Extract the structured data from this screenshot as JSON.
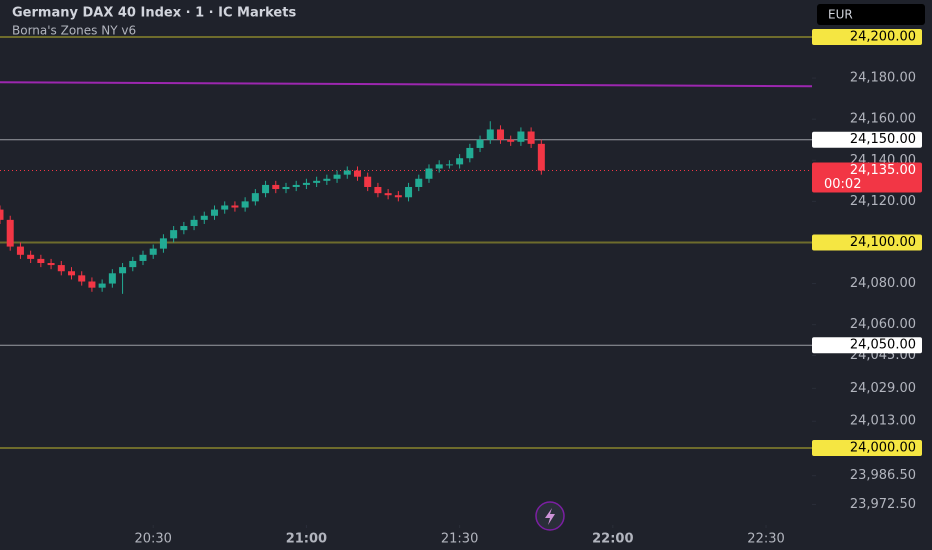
{
  "header": {
    "title": "Germany DAX 40 Index · 1 · IC Markets",
    "indicator": "Borna's Zones NY v6",
    "currency": "EUR"
  },
  "chart_data": {
    "type": "candlestick",
    "up_color": "#22ab94",
    "down_color": "#f23645",
    "ylim": [
      23962.5,
      24218
    ],
    "xlim": [
      "20:00",
      "22:39"
    ],
    "yticks": [
      {
        "value": 24180,
        "label": "24,180.00"
      },
      {
        "value": 24160,
        "label": "24,160.00"
      },
      {
        "value": 24140,
        "label": "24,140.00"
      },
      {
        "value": 24120,
        "label": "24,120.00"
      },
      {
        "value": 24080,
        "label": "24,080.00"
      },
      {
        "value": 24060,
        "label": "24,060.00"
      },
      {
        "value": 24045,
        "label": "24,045.00"
      },
      {
        "value": 24029,
        "label": "24,029.00"
      },
      {
        "value": 24013,
        "label": "24,013.00"
      },
      {
        "value": 23986.5,
        "label": "23,986.50"
      },
      {
        "value": 23972.5,
        "label": "23,972.50"
      }
    ],
    "xticks": [
      "20:30",
      "21:00",
      "21:30",
      "22:00",
      "22:30"
    ],
    "levels": [
      {
        "value": 24200,
        "label": "24,200.00",
        "color": "#6e6c2c",
        "label_color": "#f5e642"
      },
      {
        "value": 24150,
        "label": "24,150.00",
        "color": "#9a9ca3",
        "label_color": "#ffffff"
      },
      {
        "value": 24100,
        "label": "24,100.00",
        "color": "#6e6c2c",
        "label_color": "#f5e642"
      },
      {
        "value": 24050,
        "label": "24,050.00",
        "color": "#9a9ca3",
        "label_color": "#ffffff"
      },
      {
        "value": 24000,
        "label": "24,000.00",
        "color": "#6e6c2c",
        "label_color": "#f5e642"
      }
    ],
    "trend_line": {
      "values": [
        24178,
        24176
      ],
      "color": "#9c27b0"
    },
    "current_price": {
      "value": 24135,
      "label": "24,135.00",
      "countdown": "00:02",
      "color": "#f23645"
    },
    "candles": {
      "x": [
        "20:00",
        "20:02",
        "20:04",
        "20:06",
        "20:08",
        "20:10",
        "20:12",
        "20:14",
        "20:16",
        "20:18",
        "20:20",
        "20:22",
        "20:24",
        "20:26",
        "20:28",
        "20:30",
        "20:32",
        "20:34",
        "20:36",
        "20:38",
        "20:40",
        "20:42",
        "20:44",
        "20:46",
        "20:48",
        "20:50",
        "20:52",
        "20:54",
        "20:56",
        "20:58",
        "21:00",
        "21:02",
        "21:04",
        "21:06",
        "21:08",
        "21:10",
        "21:12",
        "21:14",
        "21:16",
        "21:18",
        "21:20",
        "21:22",
        "21:24",
        "21:26",
        "21:28",
        "21:30",
        "21:32",
        "21:34",
        "21:36",
        "21:38",
        "21:40",
        "21:42",
        "21:44",
        "21:46"
      ],
      "open": [
        24116,
        24111,
        24098,
        24094,
        24092,
        24090,
        24089,
        24086,
        24084,
        24081,
        24078,
        24080,
        24085,
        24088,
        24091,
        24094,
        24097,
        24102,
        24106,
        24108,
        24111,
        24113,
        24116,
        24118,
        24117,
        24120,
        24124,
        24128,
        24126,
        24127,
        24128,
        24129,
        24130,
        24131,
        24133,
        24135,
        24132,
        24127,
        24124,
        24123,
        24122,
        24127,
        24131,
        24136,
        24138,
        24138,
        24141,
        24146,
        24150,
        24155,
        24150,
        24149,
        24154,
        24148
      ],
      "high": [
        24118,
        24113,
        24100,
        24096,
        24094,
        24092,
        24091,
        24088,
        24086,
        24083,
        24082,
        24087,
        24090,
        24093,
        24096,
        24099,
        24104,
        24108,
        24110,
        24113,
        24115,
        24118,
        24120,
        24120,
        24122,
        24126,
        24130,
        24130,
        24129,
        24130,
        24131,
        24132,
        24133,
        24135,
        24137,
        24137,
        24134,
        24129,
        24126,
        24125,
        24129,
        24133,
        24138,
        24140,
        24140,
        24143,
        24148,
        24152,
        24159,
        24157,
        24152,
        24156,
        24156,
        24150
      ],
      "low": [
        24109,
        24096,
        24092,
        24090,
        24088,
        24087,
        24084,
        24082,
        24079,
        24076,
        24076,
        24078,
        24075,
        24086,
        24089,
        24092,
        24095,
        24100,
        24104,
        24106,
        24109,
        24111,
        24114,
        24115,
        24115,
        24118,
        24122,
        24124,
        24124,
        24125,
        24126,
        24127,
        24128,
        24129,
        24131,
        24130,
        24125,
        24122,
        24121,
        24120,
        24120,
        24125,
        24129,
        24134,
        24136,
        24136,
        24139,
        24144,
        24148,
        24148,
        24147,
        24147,
        24146,
        24133
      ],
      "close": [
        24111,
        24098,
        24094,
        24092,
        24090,
        24089,
        24086,
        24084,
        24081,
        24078,
        24080,
        24085,
        24088,
        24091,
        24094,
        24097,
        24102,
        24106,
        24108,
        24111,
        24113,
        24116,
        24118,
        24117,
        24120,
        24124,
        24128,
        24126,
        24127,
        24128,
        24129,
        24130,
        24131,
        24133,
        24135,
        24132,
        24127,
        24124,
        24123,
        24122,
        24127,
        24131,
        24136,
        24138,
        24138,
        24141,
        24146,
        24150,
        24155,
        24150,
        24149,
        24154,
        24148,
        24135
      ]
    }
  }
}
